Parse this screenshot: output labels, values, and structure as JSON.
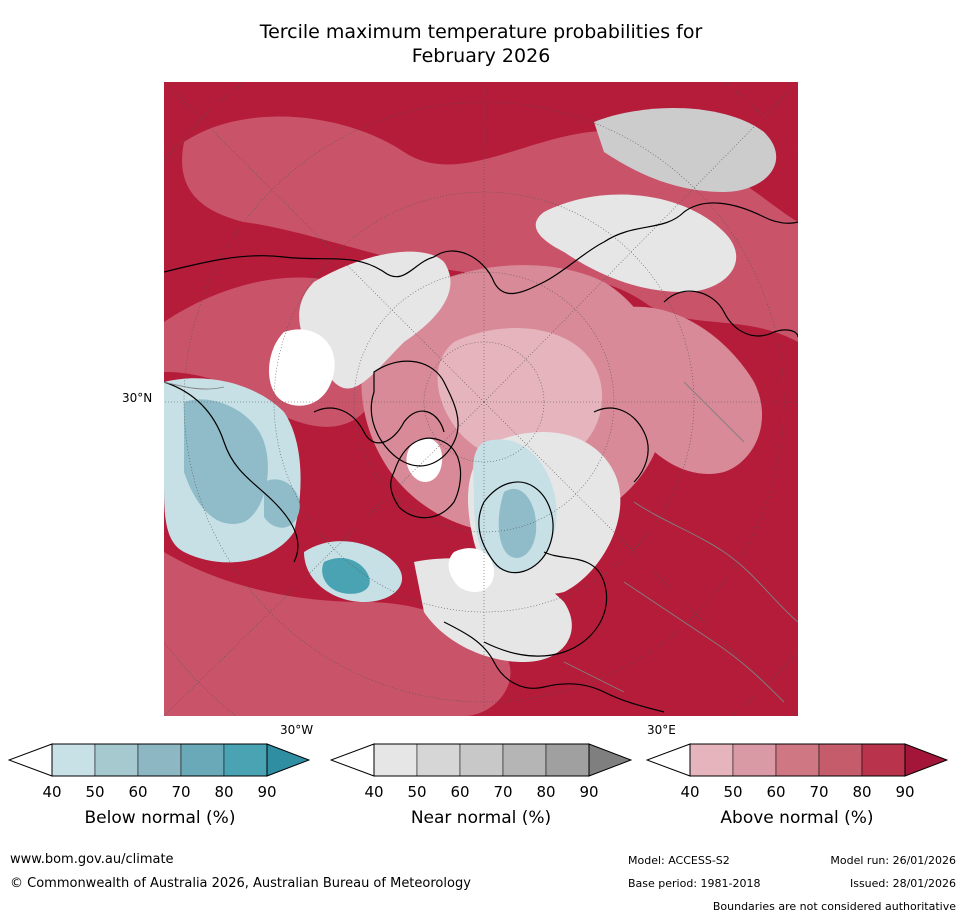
{
  "title_line1": "Tercile maximum temperature probabilities for",
  "title_line2": "February 2026",
  "map": {
    "projection": "north-polar-stereographic",
    "lat_label": "30°N",
    "lon_labels": [
      "30°W",
      "30°E"
    ],
    "colors": {
      "ocean_red_dark": "#b51c3a",
      "red_mid": "#c9546a",
      "red_light": "#d98a98",
      "red_pale": "#e5b4bd",
      "white": "#ffffff",
      "grey_light": "#e6e6e6",
      "grey_mid": "#cccccc",
      "blue_light": "#c6e0e6",
      "blue_mid": "#8fbcc8",
      "teal": "#4aa3b3",
      "coast": "#000000",
      "border": "#808080"
    }
  },
  "colorbars": [
    {
      "label": "Below normal (%)",
      "ticks": [
        "40",
        "50",
        "60",
        "70",
        "80",
        "90"
      ],
      "colors": [
        "#ffffff",
        "#c8e1e7",
        "#a6c8cf",
        "#8db7c3",
        "#6aa9b7",
        "#4aa3b3",
        "#2f8ea2"
      ]
    },
    {
      "label": "Near normal (%)",
      "ticks": [
        "40",
        "50",
        "60",
        "70",
        "80",
        "90"
      ],
      "colors": [
        "#ffffff",
        "#e6e6e6",
        "#d6d6d6",
        "#c8c8c8",
        "#b5b5b5",
        "#a0a0a0",
        "#7f7f7f"
      ]
    },
    {
      "label": "Above normal (%)",
      "ticks": [
        "40",
        "50",
        "60",
        "70",
        "80",
        "90"
      ],
      "colors": [
        "#ffffff",
        "#e5b4bd",
        "#d99aa5",
        "#cf7884",
        "#c55c6c",
        "#b9334c",
        "#a3163a"
      ]
    }
  ],
  "footer": {
    "website": "www.bom.gov.au/climate",
    "copyright": "© Commonwealth of Australia 2026, Australian Bureau of Meteorology",
    "model": "Model: ACCESS-S2",
    "base_period": "Base period: 1981-2018",
    "model_run": "Model run: 26/01/2026",
    "issued": "Issued: 28/01/2026",
    "disclaimer": "Boundaries are not considered authoritative"
  }
}
